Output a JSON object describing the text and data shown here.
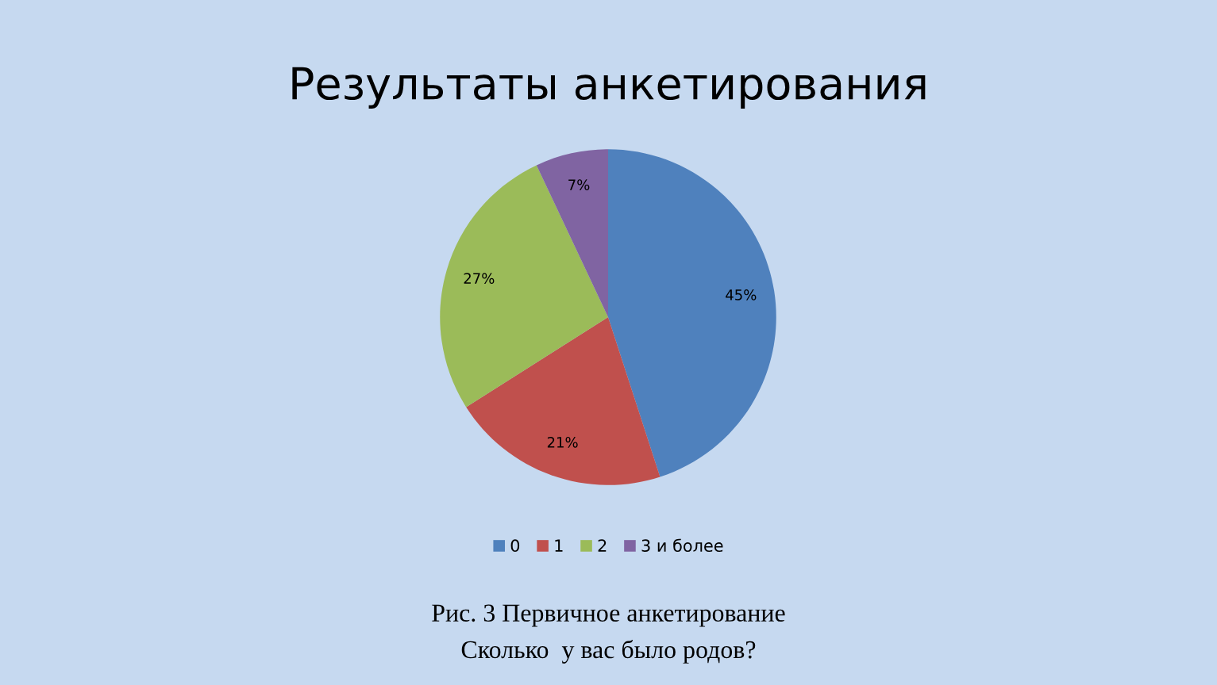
{
  "chart_data": {
    "type": "pie",
    "title": "Результаты анкетирования",
    "categories": [
      "0",
      "1",
      "2",
      "3 и более"
    ],
    "values": [
      45,
      21,
      27,
      7
    ],
    "value_labels": [
      "45%",
      "21%",
      "27%",
      "7%"
    ],
    "colors": [
      "#4f81bd",
      "#c0504d",
      "#9bbb59",
      "#8064a2"
    ],
    "legend": "bottom",
    "annotations": [
      "Рис. 3 Первичное анкетирование",
      "Сколько  у вас было родов?"
    ]
  }
}
